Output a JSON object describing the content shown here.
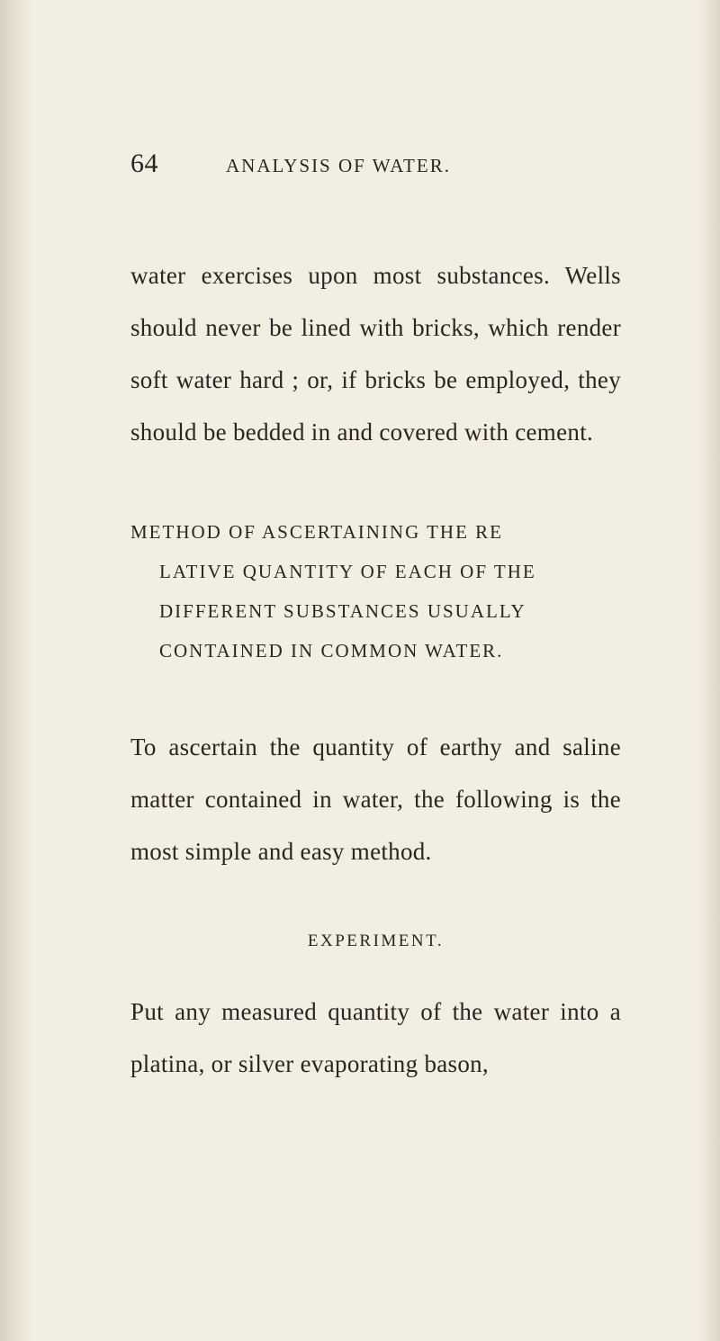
{
  "colors": {
    "paper": "#f2eee2",
    "ink": "#2a2520",
    "edge_shadow": "#d8d2c2"
  },
  "typography": {
    "body_font": "Times New Roman",
    "body_size_pt": 27,
    "heading_size_pt": 21,
    "page_number_size_pt": 30,
    "line_height": 2.15,
    "heading_letter_spacing": 2
  },
  "page_number": "64",
  "running_head": "ANALYSIS OF WATER.",
  "paragraph1": "water exercises upon most substances. Wells should never be lined with bricks, which render soft water hard ; or, if bricks be em­ployed, they should be bedded in and covered with cement.",
  "section_heading": {
    "line1": "METHOD OF ASCERTAINING THE RE­",
    "line2": "LATIVE QUANTITY OF EACH OF THE",
    "line3": "DIFFERENT SUBSTANCES USUALLY",
    "line4": "CONTAINED IN COMMON WATER."
  },
  "paragraph2": "To ascertain the quantity of earthy and saline matter contained in water, the follow­ing is the most simple and easy method.",
  "experiment_label": "EXPERIMENT.",
  "paragraph3": "Put any measured quantity of the water into a platina, or silver evaporating bason,"
}
